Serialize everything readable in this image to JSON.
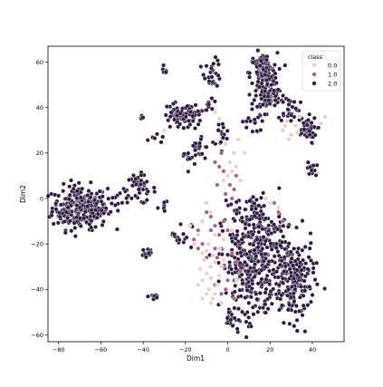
{
  "chart_data": {
    "type": "scatter",
    "title": "",
    "xlabel": "Dim1",
    "ylabel": "Dim2",
    "xlim": [
      -85,
      55
    ],
    "ylim": [
      -63,
      67
    ],
    "x_ticks": [
      -80,
      -60,
      -40,
      -20,
      0,
      20,
      40
    ],
    "y_ticks": [
      -60,
      -40,
      -20,
      0,
      20,
      40,
      60
    ],
    "x_tick_labels": [
      "−80",
      "−60",
      "−40",
      "−20",
      "0",
      "20",
      "40"
    ],
    "y_tick_labels": [
      "−60",
      "−40",
      "−20",
      "0",
      "20",
      "40",
      "60"
    ],
    "grid": false,
    "legend": {
      "title": "class",
      "placement": "top-right",
      "entries": [
        {
          "label": "0.0",
          "color": "#ecd0c8"
        },
        {
          "label": "1.0",
          "color": "#a8628e"
        },
        {
          "label": "2.0",
          "color": "#2d1a3f"
        }
      ]
    },
    "series": [
      {
        "name": "0.0",
        "color": "#ecd0c8",
        "points": [
          [
            -8,
            -30
          ],
          [
            -10,
            -33
          ],
          [
            -12,
            -36
          ],
          [
            -6,
            -28
          ],
          [
            -4,
            -34
          ],
          [
            -9,
            -40
          ],
          [
            -11,
            -27
          ],
          [
            -5,
            -38
          ],
          [
            -13,
            -31
          ],
          [
            -7,
            -25
          ],
          [
            -3,
            -30
          ],
          [
            -8,
            -35
          ],
          [
            -10,
            -23
          ],
          [
            -14,
            -38
          ],
          [
            -6,
            -42
          ],
          [
            -2,
            -27
          ],
          [
            -9,
            -20
          ],
          [
            -12,
            -24
          ],
          [
            -4,
            -22
          ],
          [
            -7,
            -44
          ],
          [
            0,
            10
          ],
          [
            2,
            12
          ],
          [
            4,
            14
          ],
          [
            -2,
            8
          ],
          [
            3,
            20
          ],
          [
            5,
            26
          ],
          [
            -1,
            24
          ],
          [
            6,
            8
          ],
          [
            8,
            20
          ],
          [
            1,
            16
          ],
          [
            26,
            30
          ],
          [
            28,
            34
          ],
          [
            30,
            28
          ],
          [
            32,
            32
          ],
          [
            34,
            36
          ],
          [
            29,
            26
          ],
          [
            27,
            32
          ],
          [
            33,
            29
          ],
          [
            44,
            33
          ],
          [
            46,
            36
          ],
          [
            20,
            -2
          ],
          [
            24,
            -4
          ],
          [
            18,
            0
          ],
          [
            -4,
            35
          ],
          [
            -6,
            38
          ],
          [
            -30,
            30
          ],
          [
            -10,
            -2
          ],
          [
            -8,
            -6
          ],
          [
            -12,
            -10
          ],
          [
            -14,
            -16
          ],
          [
            -16,
            -20
          ],
          [
            -6,
            -16
          ],
          [
            -2,
            -18
          ],
          [
            2,
            -14
          ],
          [
            -18,
            -12
          ],
          [
            -8,
            -46
          ],
          [
            -10,
            -42
          ],
          [
            -12,
            -44
          ],
          [
            -3,
            -46
          ],
          [
            4,
            -36
          ]
        ]
      },
      {
        "name": "1.0",
        "color": "#a8628e",
        "points": [
          [
            -2,
            -18
          ],
          [
            -4,
            -16
          ],
          [
            -6,
            -12
          ],
          [
            -8,
            -8
          ],
          [
            -10,
            -6
          ],
          [
            -12,
            -10
          ],
          [
            -14,
            -14
          ],
          [
            -16,
            -18
          ],
          [
            -3,
            -22
          ],
          [
            -5,
            -26
          ],
          [
            -2,
            -30
          ],
          [
            -4,
            -34
          ],
          [
            -6,
            -38
          ],
          [
            -3,
            -42
          ],
          [
            2,
            -24
          ],
          [
            4,
            -28
          ],
          [
            6,
            -32
          ],
          [
            0,
            -36
          ],
          [
            -1,
            -40
          ],
          [
            3,
            -44
          ],
          [
            -4,
            14
          ],
          [
            -2,
            12
          ],
          [
            -6,
            16
          ],
          [
            -3,
            20
          ],
          [
            1,
            6
          ],
          [
            3,
            4
          ],
          [
            -1,
            2
          ],
          [
            2,
            0
          ],
          [
            4,
            10
          ],
          [
            -5,
            6
          ],
          [
            24,
            -6
          ],
          [
            22,
            -2
          ],
          [
            26,
            -10
          ],
          [
            -12,
            -20
          ],
          [
            -14,
            -22
          ],
          [
            -2,
            -10
          ],
          [
            0,
            -14
          ],
          [
            -8,
            -14
          ],
          [
            -6,
            -22
          ],
          [
            -10,
            -26
          ]
        ]
      },
      {
        "name": "2.0",
        "color": "#2d1a3f",
        "clusters": [
          {
            "cx": -70,
            "cy": -4,
            "sx": 6.5,
            "sy": 4.8,
            "n": 260
          },
          {
            "cx": -62,
            "cy": -6,
            "sx": 2.5,
            "sy": 2,
            "n": 20
          },
          {
            "cx": -52,
            "cy": 1,
            "sx": 3,
            "sy": 1.5,
            "n": 10
          },
          {
            "cx": -42,
            "cy": 4,
            "sx": 4,
            "sy": 3.2,
            "n": 45
          },
          {
            "cx": -38,
            "cy": -24,
            "sx": 1.4,
            "sy": 1.6,
            "n": 14
          },
          {
            "cx": -35,
            "cy": -43,
            "sx": 1.3,
            "sy": 1.2,
            "n": 12
          },
          {
            "cx": -40,
            "cy": 36,
            "sx": 1,
            "sy": 0.8,
            "n": 4
          },
          {
            "cx": -30,
            "cy": 56,
            "sx": 0.8,
            "sy": 0.8,
            "n": 5
          },
          {
            "cx": -24,
            "cy": 36,
            "sx": 3.5,
            "sy": 3,
            "n": 45
          },
          {
            "cx": -16,
            "cy": 35,
            "sx": 2.5,
            "sy": 2.5,
            "n": 25
          },
          {
            "cx": -13,
            "cy": 22,
            "sx": 2.5,
            "sy": 4,
            "n": 25
          },
          {
            "cx": -7,
            "cy": 55,
            "sx": 2,
            "sy": 3,
            "n": 28
          },
          {
            "cx": -8,
            "cy": 42,
            "sx": 1.5,
            "sy": 1.5,
            "n": 10
          },
          {
            "cx": -3,
            "cy": 28,
            "sx": 2,
            "sy": 3,
            "n": 16
          },
          {
            "cx": 17,
            "cy": 55,
            "sx": 3.2,
            "sy": 4.5,
            "n": 120
          },
          {
            "cx": 19,
            "cy": 45,
            "sx": 3,
            "sy": 2.8,
            "n": 70
          },
          {
            "cx": 29,
            "cy": 40,
            "sx": 2.5,
            "sy": 3,
            "n": 30
          },
          {
            "cx": 37,
            "cy": 30,
            "sx": 2.5,
            "sy": 3,
            "n": 45
          },
          {
            "cx": 40,
            "cy": 13,
            "sx": 1.2,
            "sy": 1.5,
            "n": 12
          },
          {
            "cx": 12,
            "cy": 34,
            "sx": 2.5,
            "sy": 3,
            "n": 18
          },
          {
            "cx": 8,
            "cy": -4,
            "sx": 4,
            "sy": 2.5,
            "n": 22
          },
          {
            "cx": 8,
            "cy": -30,
            "sx": 5.5,
            "sy": 13,
            "n": 210
          },
          {
            "cx": 18,
            "cy": -24,
            "sx": 5.5,
            "sy": 11,
            "n": 200
          },
          {
            "cx": 31,
            "cy": -36,
            "sx": 5,
            "sy": 9,
            "n": 190
          },
          {
            "cx": -22,
            "cy": -16,
            "sx": 2.5,
            "sy": 3,
            "n": 16
          },
          {
            "cx": 2,
            "cy": -53,
            "sx": 2.5,
            "sy": 2,
            "n": 18
          },
          {
            "cx": -30,
            "cy": -2,
            "sx": 1,
            "sy": 1.5,
            "n": 5
          },
          {
            "cx": -34,
            "cy": 28,
            "sx": 1.5,
            "sy": 1.5,
            "n": 6
          },
          {
            "cx": -20,
            "cy": 18,
            "sx": 1.5,
            "sy": 1.5,
            "n": 6
          }
        ]
      }
    ]
  }
}
